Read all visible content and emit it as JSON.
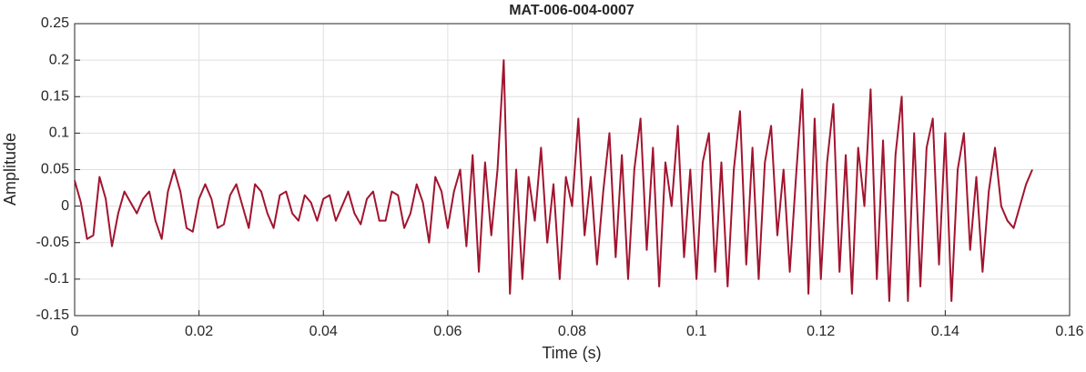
{
  "chart_data": {
    "type": "line",
    "title": "MAT-006-004-0007",
    "xlabel": "Time (s)",
    "ylabel": "Amplitude",
    "x": [
      0,
      0.001,
      0.002,
      0.003,
      0.004,
      0.005,
      0.006,
      0.007,
      0.008,
      0.009,
      0.01,
      0.011,
      0.012,
      0.013,
      0.014,
      0.015,
      0.016,
      0.017,
      0.018,
      0.019,
      0.02,
      0.021,
      0.022,
      0.023,
      0.024,
      0.025,
      0.026,
      0.027,
      0.028,
      0.029,
      0.03,
      0.031,
      0.032,
      0.033,
      0.034,
      0.035,
      0.036,
      0.037,
      0.038,
      0.039,
      0.04,
      0.041,
      0.042,
      0.043,
      0.044,
      0.045,
      0.046,
      0.047,
      0.048,
      0.049,
      0.05,
      0.051,
      0.052,
      0.053,
      0.054,
      0.055,
      0.056,
      0.057,
      0.058,
      0.059,
      0.06,
      0.061,
      0.062,
      0.063,
      0.064,
      0.065,
      0.066,
      0.067,
      0.068,
      0.069,
      0.07,
      0.071,
      0.072,
      0.073,
      0.074,
      0.075,
      0.076,
      0.077,
      0.078,
      0.079,
      0.08,
      0.081,
      0.082,
      0.083,
      0.084,
      0.085,
      0.086,
      0.087,
      0.088,
      0.089,
      0.09,
      0.091,
      0.092,
      0.093,
      0.094,
      0.095,
      0.096,
      0.097,
      0.098,
      0.099,
      0.1,
      0.101,
      0.102,
      0.103,
      0.104,
      0.105,
      0.106,
      0.107,
      0.108,
      0.109,
      0.11,
      0.111,
      0.112,
      0.113,
      0.114,
      0.115,
      0.116,
      0.117,
      0.118,
      0.119,
      0.12,
      0.121,
      0.122,
      0.123,
      0.124,
      0.125,
      0.126,
      0.127,
      0.128,
      0.129,
      0.13,
      0.131,
      0.132,
      0.133,
      0.134,
      0.135,
      0.136,
      0.137,
      0.138,
      0.139,
      0.14,
      0.141,
      0.142,
      0.143,
      0.144,
      0.145,
      0.146,
      0.147,
      0.148,
      0.149,
      0.15,
      0.151,
      0.152,
      0.153,
      0.154
    ],
    "series": [
      {
        "name": "Amplitude",
        "color": "#a2142f",
        "values": [
          0.035,
          0.005,
          -0.045,
          -0.04,
          0.04,
          0.01,
          -0.055,
          -0.01,
          0.02,
          0.005,
          -0.01,
          0.01,
          0.02,
          -0.02,
          -0.045,
          0.02,
          0.05,
          0.02,
          -0.03,
          -0.035,
          0.01,
          0.03,
          0.01,
          -0.03,
          -0.025,
          0.015,
          0.03,
          0.0,
          -0.03,
          0.03,
          0.02,
          -0.01,
          -0.03,
          0.015,
          0.02,
          -0.01,
          -0.02,
          0.015,
          0.005,
          -0.02,
          0.01,
          0.015,
          -0.02,
          0.0,
          0.02,
          -0.01,
          -0.025,
          0.01,
          0.02,
          -0.02,
          -0.02,
          0.02,
          0.015,
          -0.03,
          -0.01,
          0.03,
          0.005,
          -0.05,
          0.04,
          0.02,
          -0.03,
          0.02,
          0.05,
          -0.055,
          0.07,
          -0.09,
          0.06,
          -0.04,
          0.05,
          0.2,
          -0.12,
          0.05,
          -0.1,
          0.04,
          -0.02,
          0.08,
          -0.05,
          0.03,
          -0.1,
          0.04,
          0.0,
          0.12,
          -0.04,
          0.04,
          -0.08,
          0.02,
          0.1,
          -0.07,
          0.07,
          -0.1,
          0.05,
          0.12,
          -0.06,
          0.08,
          -0.11,
          0.06,
          0.0,
          0.11,
          -0.07,
          0.05,
          -0.1,
          0.06,
          0.1,
          -0.09,
          0.06,
          -0.11,
          0.05,
          0.13,
          -0.08,
          0.08,
          -0.1,
          0.06,
          0.11,
          -0.04,
          0.05,
          -0.09,
          0.04,
          0.16,
          -0.12,
          0.12,
          -0.1,
          0.06,
          0.14,
          -0.09,
          0.07,
          -0.12,
          0.08,
          0.0,
          0.16,
          -0.1,
          0.09,
          -0.13,
          0.07,
          0.15,
          -0.13,
          0.1,
          -0.11,
          0.08,
          0.12,
          -0.08,
          0.1,
          -0.13,
          0.05,
          0.1,
          -0.06,
          0.04,
          -0.09,
          0.02,
          0.08,
          0.0,
          -0.02,
          -0.03,
          0.0,
          0.03,
          0.05
        ]
      }
    ],
    "xlim": [
      0,
      0.16
    ],
    "xticks": [
      0,
      0.02,
      0.04,
      0.06,
      0.08,
      0.1,
      0.12,
      0.14,
      0.16
    ],
    "ylim": [
      -0.15,
      0.25
    ],
    "yticks": [
      -0.15,
      -0.1,
      -0.05,
      0,
      0.05,
      0.1,
      0.15,
      0.2,
      0.25
    ],
    "grid": true
  }
}
